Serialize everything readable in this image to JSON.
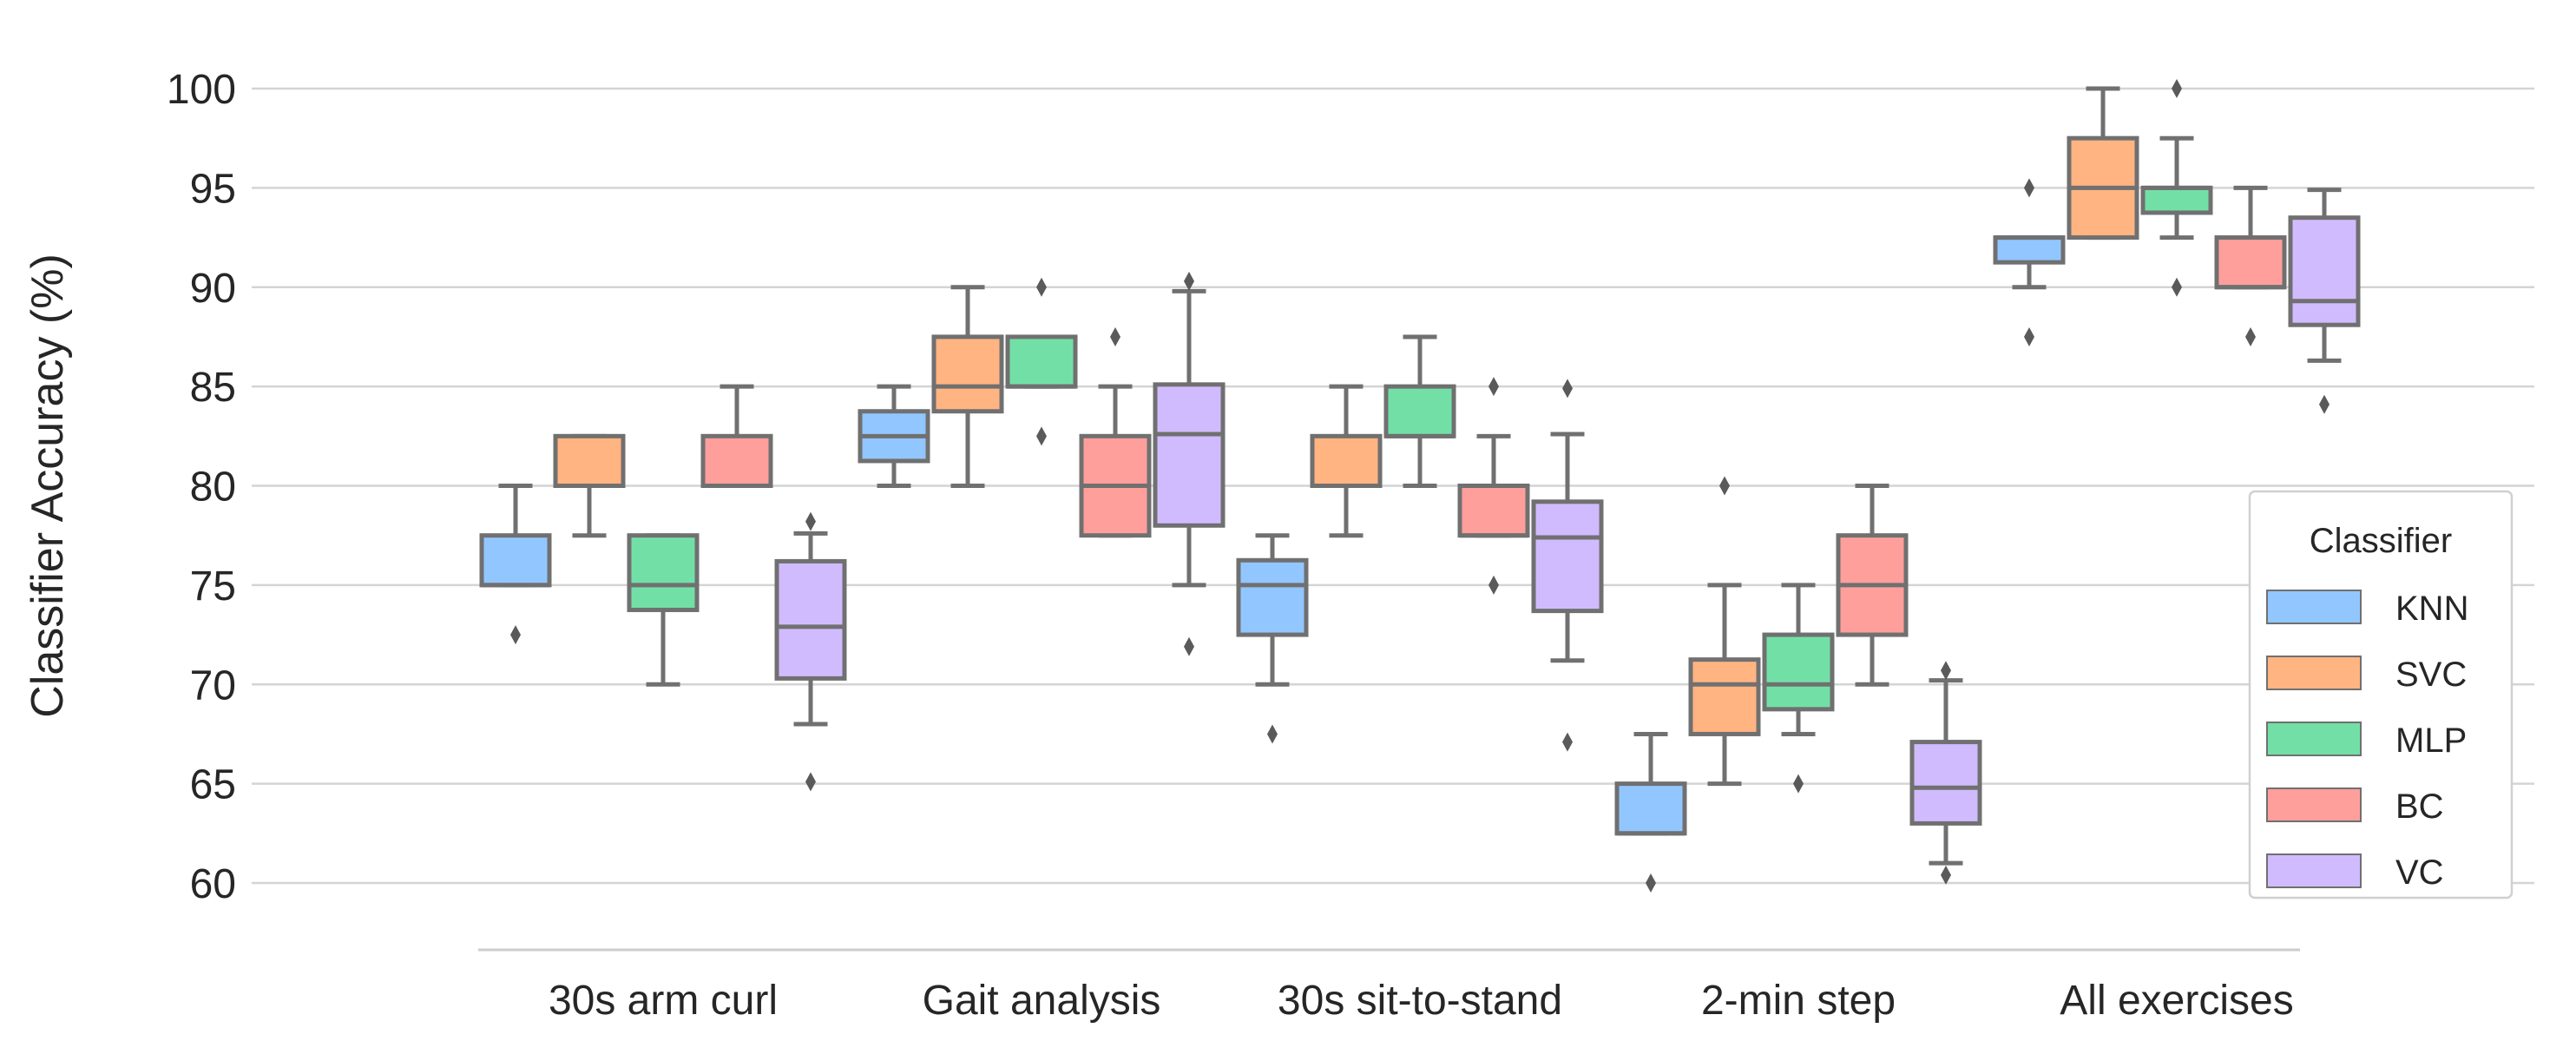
{
  "chart_data": {
    "type": "box",
    "ylabel": "Classifier Accuracy (%)",
    "xlabel": "",
    "ylim": [
      60,
      100
    ],
    "yticks": [
      60,
      65,
      70,
      75,
      80,
      85,
      90,
      95,
      100
    ],
    "grid": "horizontal",
    "categories": [
      "30s arm curl",
      "Gait analysis",
      "30s sit-to-stand",
      "2-min step",
      "All exercises"
    ],
    "legend": {
      "title": "Classifier",
      "placement": "right",
      "entries": [
        "KNN",
        "SVC",
        "MLP",
        "BC",
        "VC"
      ]
    },
    "colors": {
      "KNN": "#92c6ff",
      "SVC": "#ffb482",
      "MLP": "#72e0a6",
      "BC": "#ff9f9b",
      "VC": "#d0bbff",
      "box_edge": "#707070",
      "grid": "#d4d4d4",
      "axis": "#cccccc"
    },
    "series": [
      {
        "name": "KNN",
        "boxes": [
          {
            "whisker_low": 75,
            "q1": 75,
            "median": 75,
            "q3": 77.5,
            "whisker_high": 80,
            "outliers": [
              72.5
            ]
          },
          {
            "whisker_low": 80,
            "q1": 81.25,
            "median": 82.5,
            "q3": 83.75,
            "whisker_high": 85,
            "outliers": []
          },
          {
            "whisker_low": 70,
            "q1": 72.5,
            "median": 75,
            "q3": 76.25,
            "whisker_high": 77.5,
            "outliers": [
              67.5
            ]
          },
          {
            "whisker_low": 62.5,
            "q1": 62.5,
            "median": 62.5,
            "q3": 65,
            "whisker_high": 67.5,
            "outliers": [
              60
            ]
          },
          {
            "whisker_low": 90,
            "q1": 91.25,
            "median": 92.5,
            "q3": 92.5,
            "whisker_high": 92.5,
            "outliers": [
              87.5,
              95
            ]
          }
        ]
      },
      {
        "name": "SVC",
        "boxes": [
          {
            "whisker_low": 77.5,
            "q1": 80,
            "median": 80,
            "q3": 82.5,
            "whisker_high": 82.5,
            "outliers": []
          },
          {
            "whisker_low": 80,
            "q1": 83.75,
            "median": 85,
            "q3": 87.5,
            "whisker_high": 90,
            "outliers": []
          },
          {
            "whisker_low": 77.5,
            "q1": 80,
            "median": 80,
            "q3": 82.5,
            "whisker_high": 85,
            "outliers": []
          },
          {
            "whisker_low": 65,
            "q1": 67.5,
            "median": 70,
            "q3": 71.25,
            "whisker_high": 75,
            "outliers": [
              80
            ]
          },
          {
            "whisker_low": 92.5,
            "q1": 92.5,
            "median": 95,
            "q3": 97.5,
            "whisker_high": 100,
            "outliers": []
          }
        ]
      },
      {
        "name": "MLP",
        "boxes": [
          {
            "whisker_low": 70,
            "q1": 73.75,
            "median": 75,
            "q3": 77.5,
            "whisker_high": 77.5,
            "outliers": []
          },
          {
            "whisker_low": 85,
            "q1": 85,
            "median": 85,
            "q3": 87.5,
            "whisker_high": 87.5,
            "outliers": [
              82.5,
              90
            ]
          },
          {
            "whisker_low": 80,
            "q1": 82.5,
            "median": 82.5,
            "q3": 85,
            "whisker_high": 87.5,
            "outliers": []
          },
          {
            "whisker_low": 67.5,
            "q1": 68.75,
            "median": 70,
            "q3": 72.5,
            "whisker_high": 75,
            "outliers": [
              65
            ]
          },
          {
            "whisker_low": 92.5,
            "q1": 93.75,
            "median": 95,
            "q3": 95,
            "whisker_high": 97.5,
            "outliers": [
              90,
              100
            ]
          }
        ]
      },
      {
        "name": "BC",
        "boxes": [
          {
            "whisker_low": 80,
            "q1": 80,
            "median": 80,
            "q3": 82.5,
            "whisker_high": 85,
            "outliers": []
          },
          {
            "whisker_low": 77.5,
            "q1": 77.5,
            "median": 80,
            "q3": 82.5,
            "whisker_high": 85,
            "outliers": [
              87.5
            ]
          },
          {
            "whisker_low": 77.5,
            "q1": 77.5,
            "median": 77.5,
            "q3": 80,
            "whisker_high": 82.5,
            "outliers": [
              75,
              85
            ]
          },
          {
            "whisker_low": 70,
            "q1": 72.5,
            "median": 75,
            "q3": 77.5,
            "whisker_high": 80,
            "outliers": []
          },
          {
            "whisker_low": 90,
            "q1": 90,
            "median": 90,
            "q3": 92.5,
            "whisker_high": 95,
            "outliers": [
              87.5
            ]
          }
        ]
      },
      {
        "name": "VC",
        "boxes": [
          {
            "whisker_low": 68,
            "q1": 70.3,
            "median": 72.9,
            "q3": 76.2,
            "whisker_high": 77.6,
            "outliers": [
              65.1,
              78.2
            ]
          },
          {
            "whisker_low": 75,
            "q1": 78,
            "median": 82.6,
            "q3": 85.1,
            "whisker_high": 89.8,
            "outliers": [
              71.9,
              90.3
            ]
          },
          {
            "whisker_low": 71.2,
            "q1": 73.7,
            "median": 77.4,
            "q3": 79.2,
            "whisker_high": 82.6,
            "outliers": [
              67.1,
              84.9
            ]
          },
          {
            "whisker_low": 61,
            "q1": 63,
            "median": 64.8,
            "q3": 67.1,
            "whisker_high": 70.2,
            "outliers": [
              60.4,
              70.7
            ]
          },
          {
            "whisker_low": 86.3,
            "q1": 88.1,
            "median": 89.3,
            "q3": 93.5,
            "whisker_high": 94.9,
            "outliers": [
              84.1
            ]
          }
        ]
      }
    ]
  }
}
